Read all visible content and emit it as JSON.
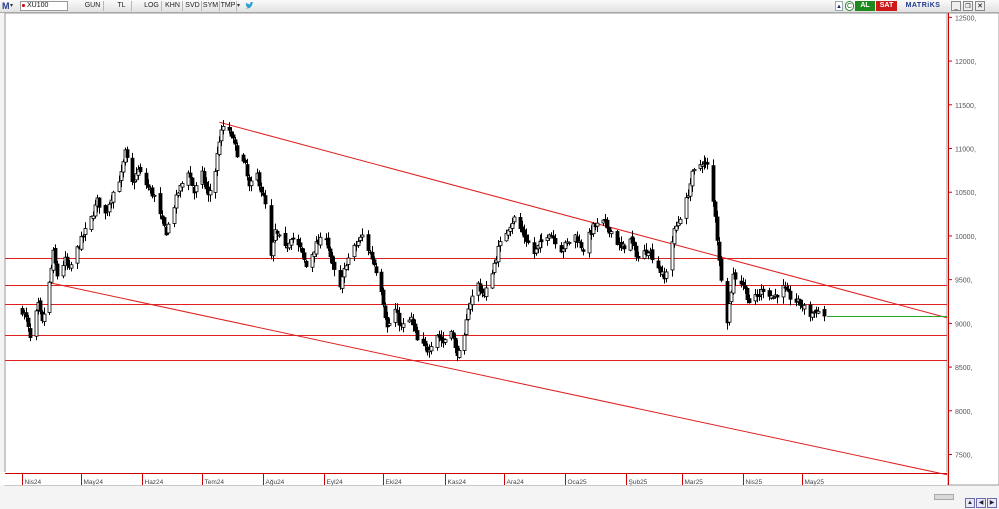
{
  "toolbar": {
    "logo": "M",
    "symbol": "XU100",
    "buttons": [
      "GUN",
      "TL",
      "LOG",
      "KHN",
      "SVD",
      "SYM",
      "TMP"
    ],
    "dropdown_icon": "chevron-down-icon",
    "share_icon": "twitter-bird-icon",
    "right": {
      "up_icon": "arrow-up-icon",
      "c_label": "C",
      "buy_label": "AL",
      "sell_label": "SAT",
      "app_label": "MATRiKS",
      "window_icons": [
        "minimize-icon",
        "restore-icon",
        "close-icon"
      ]
    }
  },
  "chart_data": {
    "type": "candlestick",
    "symbol": "XU100",
    "period": "daily",
    "price_axis": {
      "position": "right",
      "ticks": [
        "12500,",
        "12000,",
        "11500,",
        "11000,",
        "10500,",
        "10000,",
        "9500,",
        "9000,",
        "8500,",
        "8000,",
        "7500,"
      ],
      "ylim": [
        7300,
        12550
      ],
      "tick_color": "#cc0000"
    },
    "time_axis": {
      "labels": [
        "Nis24",
        "May24",
        "Haz24",
        "Tem24",
        "Ağu24",
        "Eyl24",
        "Eki24",
        "Kas24",
        "Ara24",
        "Oca25",
        "Şub25",
        "Mar25",
        "Nis25",
        "May25"
      ],
      "tick_color": "#cc0000"
    },
    "horizontal_lines": {
      "color": "#e02020",
      "levels": [
        9750,
        9440,
        9220,
        8870,
        8580
      ]
    },
    "trend_lines": {
      "color": "#e02020",
      "lines": [
        {
          "from": {
            "date": "2024-07-10",
            "price": 11300
          },
          "to": {
            "date": "2025-05-14",
            "price": 9430
          }
        },
        {
          "from": {
            "date": "2024-04-16",
            "price": 9460
          },
          "to": {
            "date": "2025-05-14",
            "price": 7560
          }
        }
      ]
    },
    "last_price_line": {
      "price": 9090,
      "color": "#22aa22"
    },
    "waypoints": [
      [
        "2024-04-01",
        9150
      ],
      [
        "2024-04-03",
        9050
      ],
      [
        "2024-04-05",
        8820
      ],
      [
        "2024-04-09",
        9200
      ],
      [
        "2024-04-11",
        9000
      ],
      [
        "2024-04-15",
        9450
      ],
      [
        "2024-04-17",
        9800
      ],
      [
        "2024-04-19",
        9550
      ],
      [
        "2024-04-23",
        9720
      ],
      [
        "2024-04-25",
        9600
      ],
      [
        "2024-04-29",
        9850
      ],
      [
        "2024-05-02",
        10000
      ],
      [
        "2024-05-06",
        10200
      ],
      [
        "2024-05-09",
        10400
      ],
      [
        "2024-05-13",
        10250
      ],
      [
        "2024-05-16",
        10450
      ],
      [
        "2024-05-21",
        10700
      ],
      [
        "2024-05-23",
        10950
      ],
      [
        "2024-05-27",
        10600
      ],
      [
        "2024-05-30",
        10750
      ],
      [
        "2024-06-04",
        10550
      ],
      [
        "2024-06-07",
        10450
      ],
      [
        "2024-06-11",
        10150
      ],
      [
        "2024-06-13",
        10050
      ],
      [
        "2024-06-19",
        10500
      ],
      [
        "2024-06-24",
        10750
      ],
      [
        "2024-06-27",
        10500
      ],
      [
        "2024-07-01",
        10700
      ],
      [
        "2024-07-04",
        10450
      ],
      [
        "2024-07-08",
        10750
      ],
      [
        "2024-07-10",
        11100
      ],
      [
        "2024-07-12",
        11250
      ],
      [
        "2024-07-16",
        11150
      ],
      [
        "2024-07-19",
        10950
      ],
      [
        "2024-07-23",
        10800
      ],
      [
        "2024-07-25",
        10550
      ],
      [
        "2024-07-29",
        10700
      ],
      [
        "2024-08-02",
        10350
      ],
      [
        "2024-08-05",
        9750
      ],
      [
        "2024-08-07",
        10050
      ],
      [
        "2024-08-12",
        9850
      ],
      [
        "2024-08-15",
        10000
      ],
      [
        "2024-08-20",
        9850
      ],
      [
        "2024-08-23",
        9650
      ],
      [
        "2024-08-28",
        9900
      ],
      [
        "2024-09-02",
        10000
      ],
      [
        "2024-09-05",
        9650
      ],
      [
        "2024-09-09",
        9400
      ],
      [
        "2024-09-12",
        9700
      ],
      [
        "2024-09-17",
        9900
      ],
      [
        "2024-09-20",
        10000
      ],
      [
        "2024-09-25",
        9750
      ],
      [
        "2024-09-30",
        9400
      ],
      [
        "2024-10-03",
        8950
      ],
      [
        "2024-10-07",
        9150
      ],
      [
        "2024-10-10",
        8950
      ],
      [
        "2024-10-15",
        9050
      ],
      [
        "2024-10-18",
        8800
      ],
      [
        "2024-10-23",
        8700
      ],
      [
        "2024-10-28",
        8880
      ],
      [
        "2024-10-31",
        8780
      ],
      [
        "2024-11-04",
        8950
      ],
      [
        "2024-11-06",
        8700
      ],
      [
        "2024-11-08",
        8650
      ],
      [
        "2024-11-11",
        8820
      ],
      [
        "2024-11-13",
        9200
      ],
      [
        "2024-11-18",
        9450
      ],
      [
        "2024-11-21",
        9300
      ],
      [
        "2024-11-25",
        9600
      ],
      [
        "2024-11-28",
        9850
      ],
      [
        "2024-12-03",
        10100
      ],
      [
        "2024-12-06",
        10200
      ],
      [
        "2024-12-11",
        10000
      ],
      [
        "2024-12-16",
        9800
      ],
      [
        "2024-12-19",
        9900
      ],
      [
        "2024-12-24",
        10050
      ],
      [
        "2024-12-30",
        9850
      ],
      [
        "2025-01-06",
        10000
      ],
      [
        "2025-01-10",
        9850
      ],
      [
        "2025-01-15",
        10100
      ],
      [
        "2025-01-20",
        10150
      ],
      [
        "2025-01-24",
        10050
      ],
      [
        "2025-01-29",
        9850
      ],
      [
        "2025-02-03",
        9950
      ],
      [
        "2025-02-07",
        9750
      ],
      [
        "2025-02-12",
        9850
      ],
      [
        "2025-02-17",
        9650
      ],
      [
        "2025-02-20",
        9500
      ],
      [
        "2025-02-25",
        10050
      ],
      [
        "2025-03-03",
        10400
      ],
      [
        "2025-03-06",
        10700
      ],
      [
        "2025-03-11",
        10850
      ],
      [
        "2025-03-14",
        10800
      ],
      [
        "2025-03-18",
        10250
      ],
      [
        "2025-03-20",
        9700
      ],
      [
        "2025-03-24",
        9050
      ],
      [
        "2025-03-27",
        9550
      ],
      [
        "2025-04-01",
        9450
      ],
      [
        "2025-04-04",
        9250
      ],
      [
        "2025-04-08",
        9300
      ],
      [
        "2025-04-11",
        9400
      ],
      [
        "2025-04-16",
        9300
      ],
      [
        "2025-04-21",
        9400
      ],
      [
        "2025-04-25",
        9300
      ],
      [
        "2025-04-30",
        9220
      ],
      [
        "2025-05-05",
        9100
      ],
      [
        "2025-05-08",
        9150
      ],
      [
        "2025-05-12",
        9090
      ]
    ]
  },
  "bottom_nav": {
    "icons": [
      "chevron-up-icon",
      "arrow-left-icon",
      "arrow-right-icon"
    ]
  }
}
